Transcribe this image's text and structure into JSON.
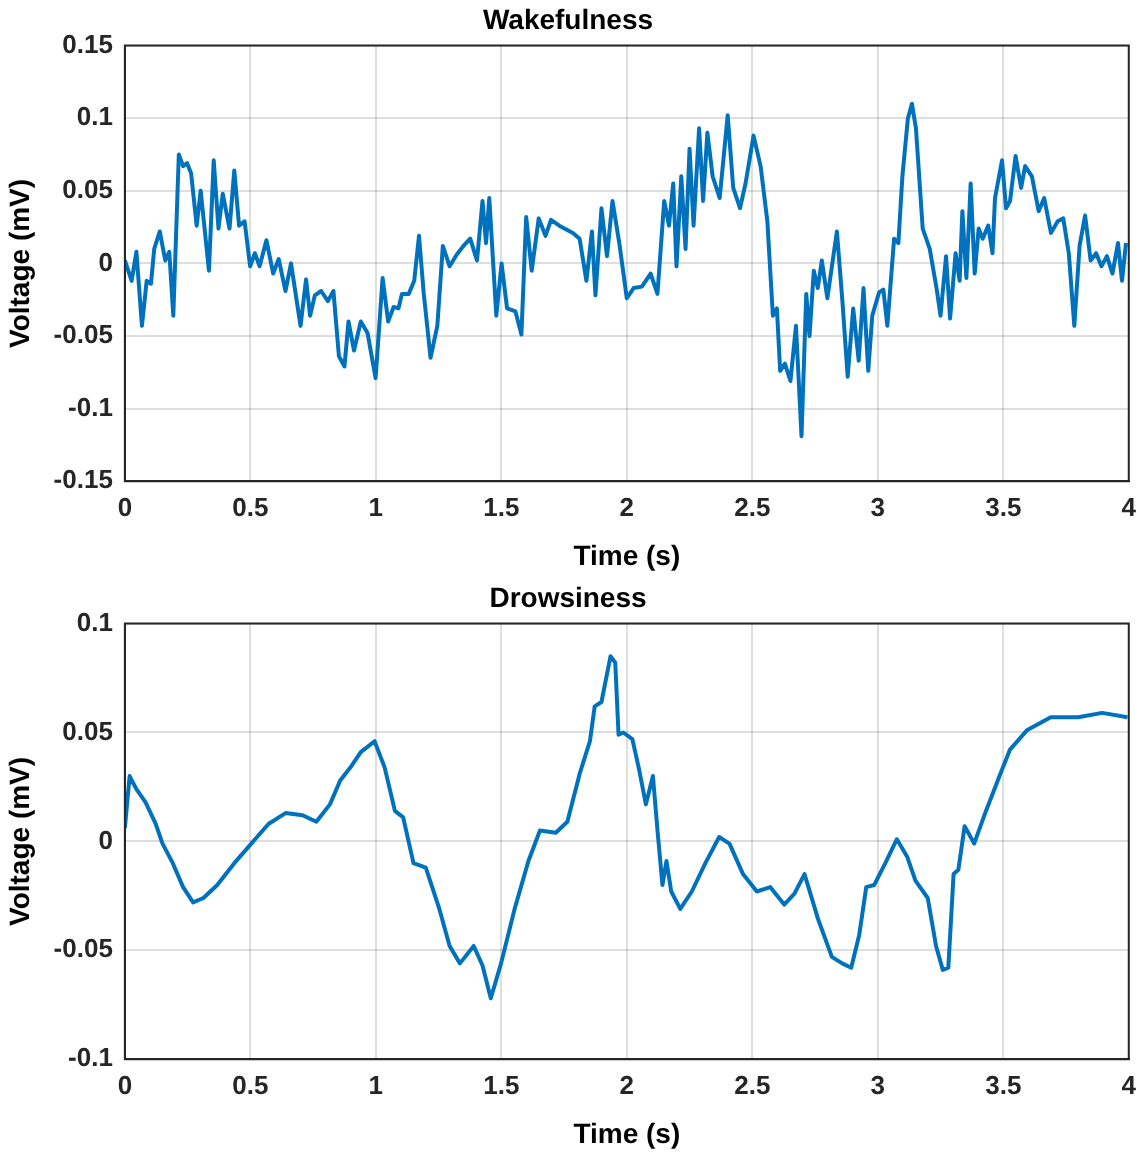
{
  "chart_data": [
    {
      "type": "line",
      "title": "Wakefulness",
      "xlabel": "Time (s)",
      "ylabel": "Voltage (mV)",
      "xlim": [
        0,
        4
      ],
      "xticks": [
        0,
        0.5,
        1,
        1.5,
        2,
        2.5,
        3,
        3.5,
        4
      ],
      "ylim": [
        -0.15,
        0.15
      ],
      "yticks": [
        -0.15,
        -0.1,
        -0.05,
        0,
        0.05,
        0.1,
        0.15
      ],
      "grid": true,
      "legend": false,
      "marker": "none",
      "line_style": "solid",
      "series": [
        {
          "color": "#0072bd",
          "x": [
            0,
            0.027,
            0.046,
            0.068,
            0.087,
            0.104,
            0.117,
            0.139,
            0.161,
            0.177,
            0.193,
            0.215,
            0.232,
            0.248,
            0.264,
            0.286,
            0.302,
            0.335,
            0.354,
            0.373,
            0.39,
            0.417,
            0.436,
            0.455,
            0.477,
            0.499,
            0.518,
            0.537,
            0.564,
            0.591,
            0.613,
            0.64,
            0.662,
            0.7,
            0.722,
            0.738,
            0.757,
            0.782,
            0.809,
            0.831,
            0.853,
            0.875,
            0.891,
            0.913,
            0.94,
            0.967,
            0.999,
            1.027,
            1.049,
            1.071,
            1.09,
            1.104,
            1.131,
            1.153,
            1.172,
            1.191,
            1.218,
            1.245,
            1.267,
            1.294,
            1.322,
            1.349,
            1.376,
            1.403,
            1.425,
            1.439,
            1.452,
            1.48,
            1.501,
            1.523,
            1.556,
            1.58,
            1.599,
            1.621,
            1.649,
            1.676,
            1.698,
            1.731,
            1.785,
            1.812,
            1.839,
            1.861,
            1.875,
            1.899,
            1.921,
            1.943,
            1.97,
            2.0,
            2.027,
            2.06,
            2.095,
            2.122,
            2.149,
            2.168,
            2.185,
            2.198,
            2.217,
            2.234,
            2.25,
            2.266,
            2.288,
            2.304,
            2.321,
            2.342,
            2.37,
            2.402,
            2.424,
            2.451,
            2.473,
            2.505,
            2.533,
            2.56,
            2.582,
            2.598,
            2.611,
            2.63,
            2.652,
            2.674,
            2.696,
            2.715,
            2.728,
            2.745,
            2.761,
            2.777,
            2.799,
            2.837,
            2.859,
            2.88,
            2.902,
            2.924,
            2.943,
            2.962,
            2.978,
            3.005,
            3.022,
            3.038,
            3.065,
            3.082,
            3.098,
            3.12,
            3.136,
            3.152,
            3.179,
            3.207,
            3.234,
            3.25,
            3.272,
            3.288,
            3.31,
            3.326,
            3.337,
            3.353,
            3.37,
            3.386,
            3.402,
            3.418,
            3.44,
            3.457,
            3.467,
            3.495,
            3.511,
            3.527,
            3.549,
            3.571,
            3.587,
            3.614,
            3.641,
            3.663,
            3.69,
            3.717,
            3.739,
            3.761,
            3.783,
            3.804,
            3.826,
            3.848,
            3.87,
            3.891,
            3.913,
            3.935,
            3.957,
            3.973,
            3.989
          ],
          "values": [
            0.002,
            -0.012,
            0.008,
            -0.043,
            -0.012,
            -0.014,
            0.01,
            0.022,
            0.002,
            0.008,
            -0.036,
            0.075,
            0.067,
            0.069,
            0.062,
            0.026,
            0.05,
            -0.005,
            0.071,
            0.024,
            0.048,
            0.024,
            0.064,
            0.026,
            0.029,
            -0.002,
            0.007,
            -0.002,
            0.016,
            -0.007,
            0.003,
            -0.019,
            0,
            -0.043,
            -0.011,
            -0.036,
            -0.022,
            -0.019,
            -0.026,
            -0.019,
            -0.064,
            -0.071,
            -0.04,
            -0.06,
            -0.04,
            -0.048,
            -0.079,
            -0.01,
            -0.04,
            -0.03,
            -0.031,
            -0.021,
            -0.021,
            -0.012,
            0.019,
            -0.021,
            -0.065,
            -0.043,
            0.012,
            -0.002,
            0.006,
            0.012,
            0.017,
            0.002,
            0.043,
            0.014,
            0.045,
            -0.036,
            0,
            -0.031,
            -0.033,
            -0.049,
            0.032,
            -0.005,
            0.031,
            0.019,
            0.03,
            0.026,
            0.021,
            0.017,
            -0.012,
            0.022,
            -0.022,
            0.038,
            0.005,
            0.043,
            0.014,
            -0.024,
            -0.017,
            -0.016,
            -0.007,
            -0.021,
            0.043,
            0.026,
            0.055,
            -0.002,
            0.06,
            0.01,
            0.079,
            0.026,
            0.093,
            0.043,
            0.09,
            0.06,
            0.045,
            0.102,
            0.052,
            0.038,
            0.055,
            0.088,
            0.067,
            0.029,
            -0.036,
            -0.031,
            -0.074,
            -0.069,
            -0.081,
            -0.043,
            -0.119,
            -0.021,
            -0.05,
            -0.005,
            -0.017,
            0.002,
            -0.024,
            0.022,
            -0.026,
            -0.078,
            -0.031,
            -0.067,
            -0.017,
            -0.074,
            -0.036,
            -0.02,
            -0.018,
            -0.043,
            0.017,
            0.014,
            0.06,
            0.1,
            0.11,
            0.093,
            0.024,
            0.01,
            -0.017,
            -0.036,
            0.005,
            -0.038,
            0.007,
            -0.012,
            0.036,
            -0.01,
            0.055,
            -0.007,
            0.024,
            0.017,
            0.026,
            0.007,
            0.045,
            0.071,
            0.038,
            0.043,
            0.074,
            0.052,
            0.067,
            0.06,
            0.036,
            0.045,
            0.021,
            0.029,
            0.031,
            0.007,
            -0.043,
            0.012,
            0.033,
            0.002,
            0.007,
            -0.002,
            0.005,
            -0.007,
            0.014,
            -0.012,
            0.014
          ]
        }
      ]
    },
    {
      "type": "line",
      "title": "Drowsiness",
      "xlabel": "Time (s)",
      "ylabel": "Voltage (mV)",
      "xlim": [
        0,
        4
      ],
      "xticks": [
        0,
        0.5,
        1,
        1.5,
        2,
        2.5,
        3,
        3.5,
        4
      ],
      "ylim": [
        -0.1,
        0.1
      ],
      "yticks": [
        -0.1,
        -0.05,
        0,
        0.05,
        0.1
      ],
      "grid": true,
      "legend": false,
      "marker": "none",
      "line_style": "solid",
      "series": [
        {
          "color": "#0072bd",
          "x": [
            0,
            0.019,
            0.046,
            0.082,
            0.123,
            0.15,
            0.191,
            0.232,
            0.272,
            0.313,
            0.368,
            0.436,
            0.504,
            0.572,
            0.64,
            0.708,
            0.763,
            0.817,
            0.858,
            0.899,
            0.94,
            0.995,
            1.035,
            1.076,
            1.109,
            1.15,
            1.199,
            1.253,
            1.294,
            1.335,
            1.39,
            1.425,
            1.458,
            1.499,
            1.553,
            1.608,
            1.654,
            1.717,
            1.763,
            1.812,
            1.853,
            1.872,
            1.899,
            1.935,
            1.954,
            1.967,
            1.986,
            2.022,
            2.049,
            2.076,
            2.104,
            2.123,
            2.142,
            2.158,
            2.177,
            2.213,
            2.259,
            2.313,
            2.368,
            2.409,
            2.463,
            2.518,
            2.572,
            2.627,
            2.668,
            2.708,
            2.763,
            2.817,
            2.858,
            2.894,
            2.926,
            2.954,
            2.986,
            3.03,
            3.076,
            3.117,
            3.15,
            3.199,
            3.232,
            3.259,
            3.281,
            3.302,
            3.321,
            3.346,
            3.384,
            3.431,
            3.485,
            3.526,
            3.594,
            3.689,
            3.798,
            3.894,
            3.995
          ],
          "values": [
            0.006,
            0.03,
            0.024,
            0.018,
            0.008,
            -0.001,
            -0.01,
            -0.021,
            -0.028,
            -0.026,
            -0.02,
            -0.01,
            -0.001,
            0.008,
            0.013,
            0.012,
            0.009,
            0.017,
            0.028,
            0.034,
            0.041,
            0.046,
            0.034,
            0.014,
            0.011,
            -0.01,
            -0.012,
            -0.031,
            -0.048,
            -0.056,
            -0.048,
            -0.057,
            -0.072,
            -0.056,
            -0.031,
            -0.009,
            0.005,
            0.004,
            0.009,
            0.031,
            0.046,
            0.062,
            0.064,
            0.085,
            0.082,
            0.049,
            0.05,
            0.047,
            0.033,
            0.017,
            0.03,
            0.004,
            -0.02,
            -0.009,
            -0.023,
            -0.031,
            -0.023,
            -0.01,
            0.002,
            -0.001,
            -0.015,
            -0.023,
            -0.021,
            -0.029,
            -0.024,
            -0.015,
            -0.036,
            -0.053,
            -0.056,
            -0.058,
            -0.043,
            -0.021,
            -0.02,
            -0.01,
            0.001,
            -0.007,
            -0.018,
            -0.026,
            -0.048,
            -0.059,
            -0.058,
            -0.015,
            -0.013,
            0.007,
            -0.001,
            0.014,
            0.03,
            0.042,
            0.051,
            0.057,
            0.057,
            0.059,
            0.057
          ]
        }
      ]
    }
  ]
}
